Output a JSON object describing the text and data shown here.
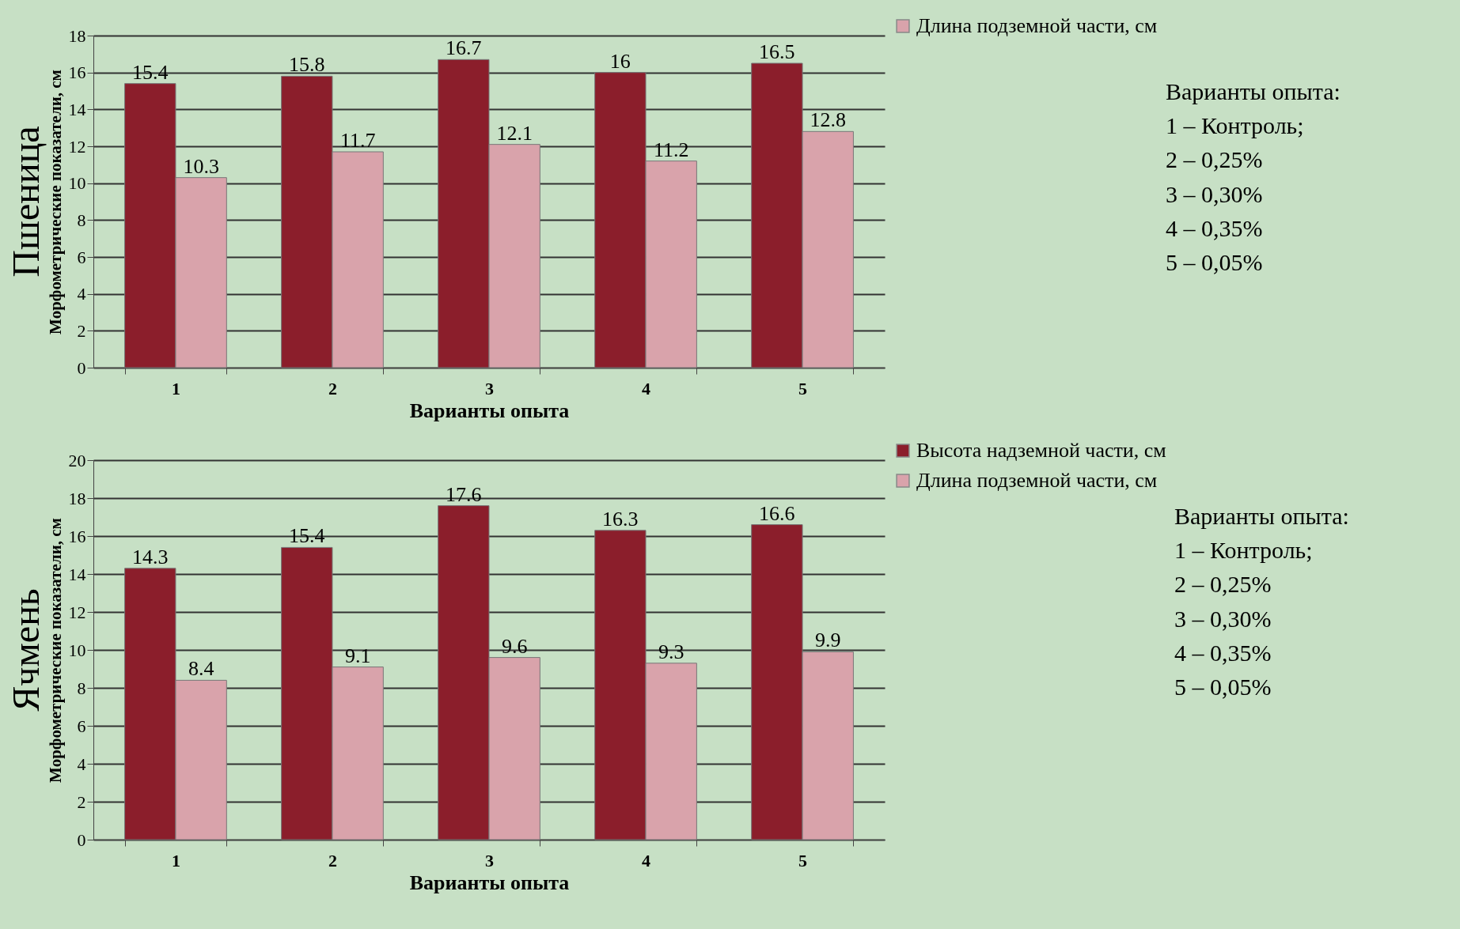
{
  "chart_data": [
    {
      "type": "bar",
      "title": "Пшеница",
      "ylabel": "Морфометрические показатели, см",
      "xlabel": "Варианты опыта",
      "categories": [
        "1",
        "2",
        "3",
        "4",
        "5"
      ],
      "series": [
        {
          "color": "#8b1e2b",
          "values": [
            15.4,
            15.8,
            16.7,
            16,
            16.5
          ]
        },
        {
          "name": "Длина подземной части, см",
          "color": "#d9a3ab",
          "values": [
            10.3,
            11.7,
            12.1,
            11.2,
            12.8
          ]
        }
      ],
      "ylim": [
        0,
        18
      ],
      "yticks": [
        0,
        2,
        4,
        6,
        8,
        10,
        12,
        14,
        16,
        18
      ],
      "grid": "y",
      "legend": "top right",
      "data_labels": true,
      "annotations": [
        "Варианты опыта:",
        "1 – Контроль;",
        "2 – 0,25%",
        "3 – 0,30%",
        "4 – 0,35%",
        "5 – 0,05%"
      ]
    },
    {
      "type": "bar",
      "title": "Ячмень",
      "ylabel": "Морфометрические показатели, см",
      "xlabel": "Варианты опыта",
      "categories": [
        "1",
        "2",
        "3",
        "4",
        "5"
      ],
      "series": [
        {
          "name": "Высота надземной части, см",
          "color": "#8b1e2b",
          "values": [
            14.3,
            15.4,
            17.6,
            16.3,
            16.6
          ]
        },
        {
          "name": "Длина подземной части, см",
          "color": "#d9a3ab",
          "values": [
            8.4,
            9.1,
            9.6,
            9.3,
            9.9
          ]
        }
      ],
      "ylim": [
        0,
        20
      ],
      "yticks": [
        0,
        2,
        4,
        6,
        8,
        10,
        12,
        14,
        16,
        18,
        20
      ],
      "grid": "y",
      "legend": "top right",
      "data_labels": true,
      "annotations": [
        "Варианты опыта:",
        "1 – Контроль;",
        "2 – 0,25%",
        "3 – 0,30%",
        "4 – 0,35%",
        "5 – 0,05%"
      ]
    }
  ]
}
